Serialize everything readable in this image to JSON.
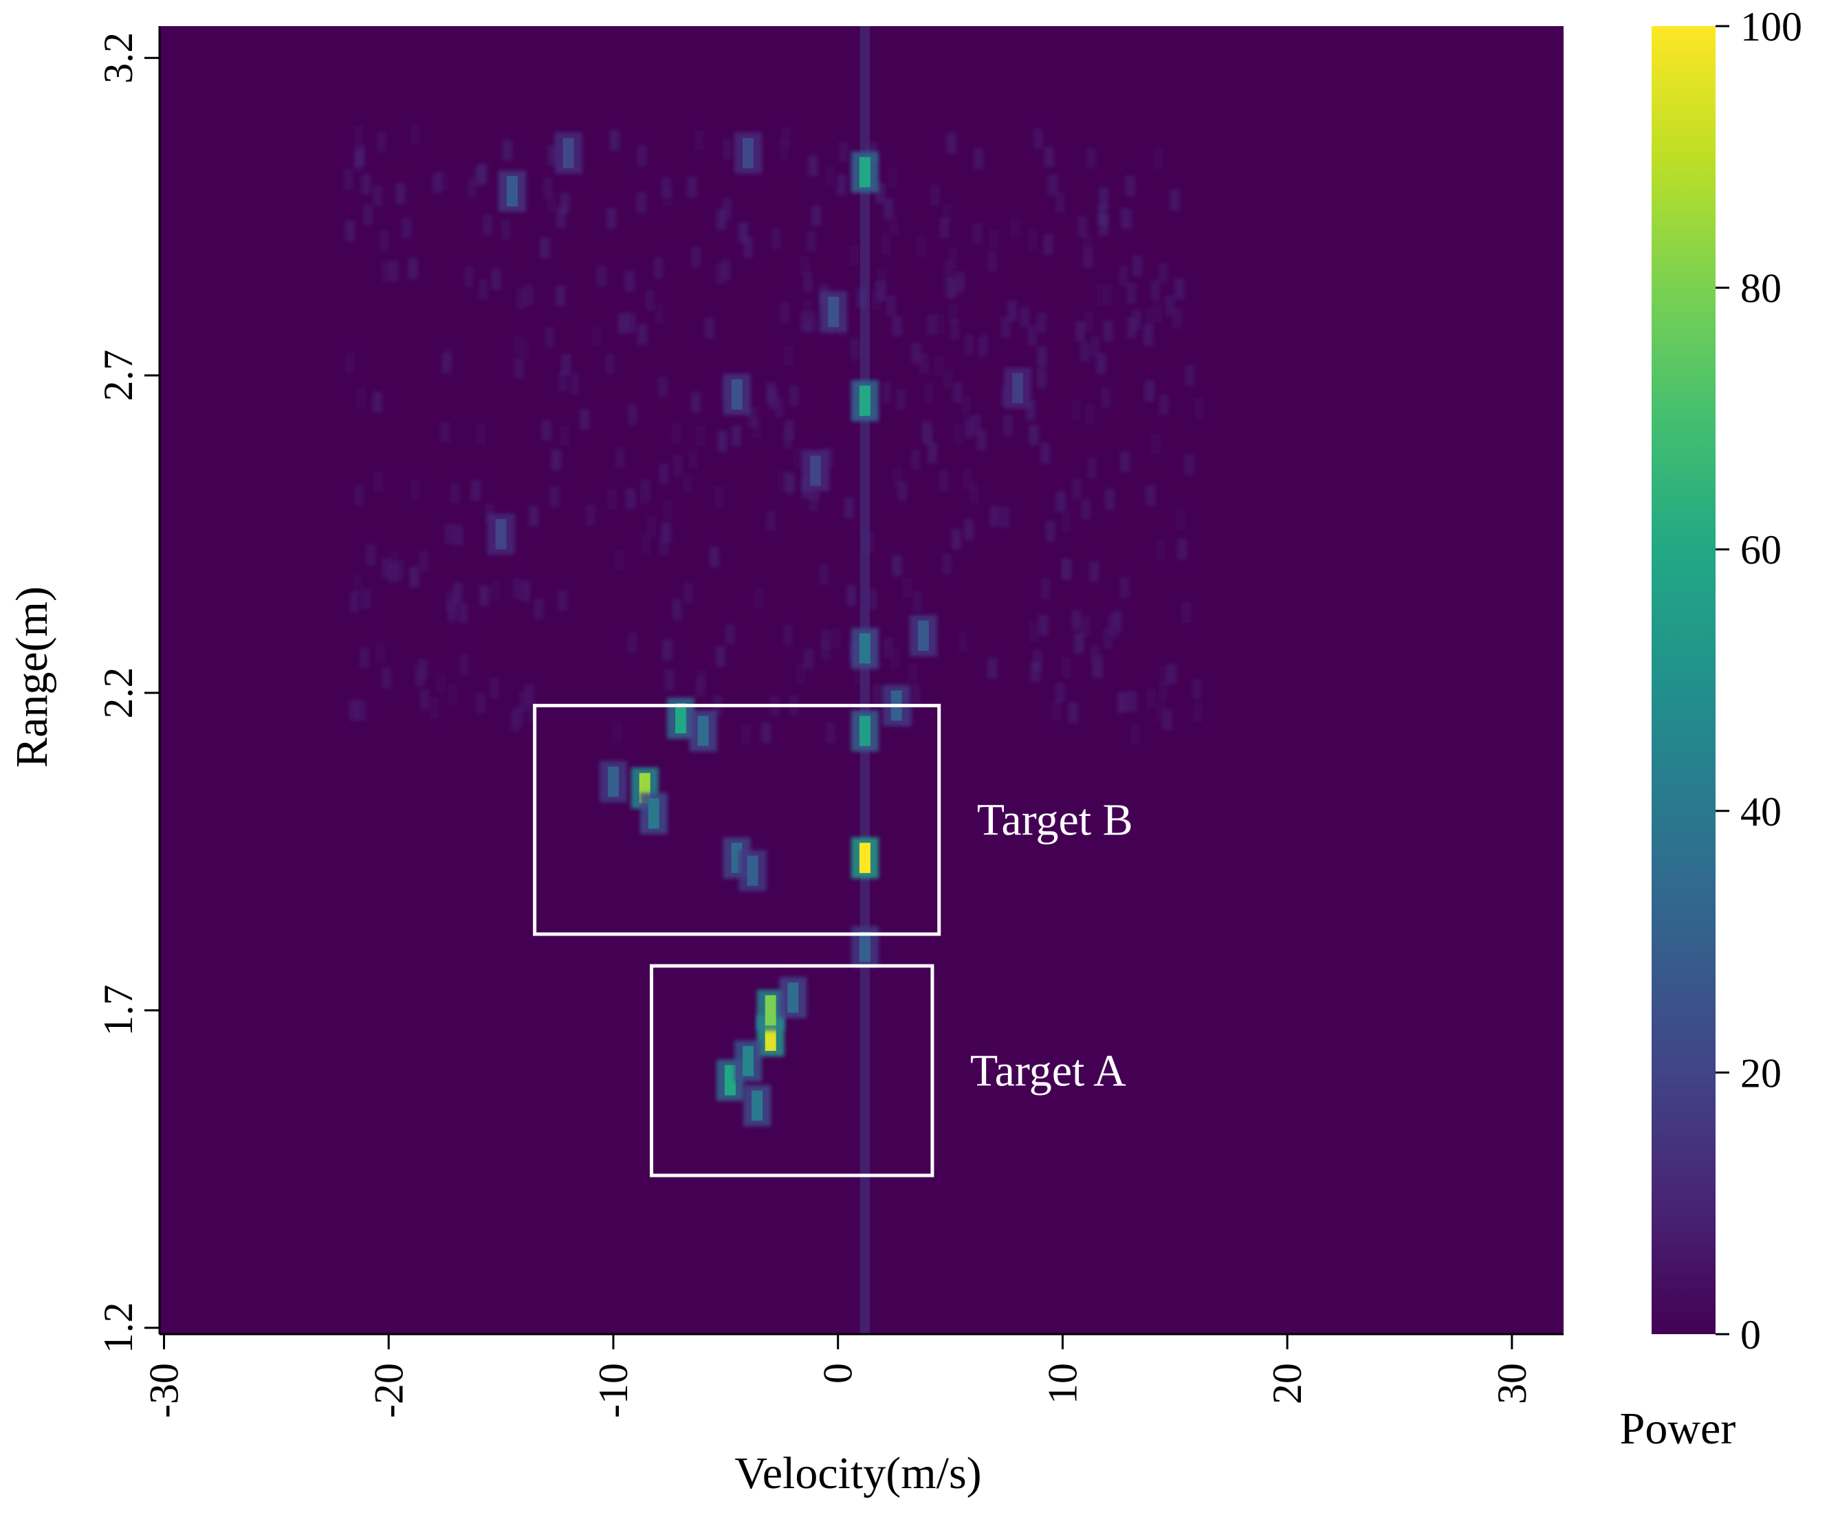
{
  "chart_data": {
    "type": "heatmap",
    "title": "",
    "xlabel": "Velocity(m/s)",
    "ylabel": "Range(m)",
    "xlim": [
      -30.2,
      32.3
    ],
    "ylim": [
      1.19,
      3.25
    ],
    "x_ticks": [
      -30,
      -20,
      -10,
      0,
      10,
      20,
      30
    ],
    "x_tick_labels": [
      "-30",
      "-20",
      "-10",
      "0",
      "10",
      "20",
      "30"
    ],
    "y_ticks": [
      1.2,
      1.7,
      2.2,
      2.7,
      3.2
    ],
    "y_tick_labels": [
      "1.2",
      "1.7",
      "2.2",
      "2.7",
      "3.2"
    ],
    "colorbar": {
      "label": "Power",
      "range": [
        0,
        100
      ],
      "ticks": [
        0,
        20,
        40,
        60,
        80,
        100
      ],
      "tick_labels": [
        "0",
        "20",
        "40",
        "60",
        "80",
        "100"
      ],
      "colormap": "viridis"
    },
    "background_color": "#440154",
    "hotspots": [
      {
        "x": 1.2,
        "y": 1.94,
        "value": 100
      },
      {
        "x": 1.2,
        "y": 2.14,
        "value": 55
      },
      {
        "x": 1.2,
        "y": 2.27,
        "value": 40
      },
      {
        "x": 1.2,
        "y": 2.66,
        "value": 60
      },
      {
        "x": 1.2,
        "y": 3.02,
        "value": 60
      },
      {
        "x": 1.2,
        "y": 1.8,
        "value": 30
      },
      {
        "x": -0.2,
        "y": 2.8,
        "value": 25
      },
      {
        "x": -3.0,
        "y": 1.66,
        "value": 95
      },
      {
        "x": -3.0,
        "y": 1.7,
        "value": 80
      },
      {
        "x": -4.8,
        "y": 1.59,
        "value": 60
      },
      {
        "x": -4.0,
        "y": 1.62,
        "value": 45
      },
      {
        "x": -3.6,
        "y": 1.55,
        "value": 40
      },
      {
        "x": -2.0,
        "y": 1.72,
        "value": 35
      },
      {
        "x": -8.6,
        "y": 2.05,
        "value": 85
      },
      {
        "x": -8.2,
        "y": 2.01,
        "value": 40
      },
      {
        "x": -7.0,
        "y": 2.16,
        "value": 60
      },
      {
        "x": -6.0,
        "y": 2.14,
        "value": 35
      },
      {
        "x": -4.5,
        "y": 1.94,
        "value": 35
      },
      {
        "x": -3.8,
        "y": 1.92,
        "value": 30
      },
      {
        "x": -10.0,
        "y": 2.06,
        "value": 30
      },
      {
        "x": 2.6,
        "y": 2.18,
        "value": 30
      },
      {
        "x": 3.8,
        "y": 2.29,
        "value": 28
      },
      {
        "x": -14.5,
        "y": 2.99,
        "value": 28
      },
      {
        "x": -12.0,
        "y": 3.05,
        "value": 22
      },
      {
        "x": -4.5,
        "y": 2.67,
        "value": 25
      },
      {
        "x": -4.0,
        "y": 3.05,
        "value": 22
      },
      {
        "x": -1.0,
        "y": 2.55,
        "value": 20
      },
      {
        "x": -15.0,
        "y": 2.45,
        "value": 20
      },
      {
        "x": 8.0,
        "y": 2.68,
        "value": 18
      }
    ],
    "annotations": [
      {
        "text": "Target B",
        "box_x": [
          -13.5,
          4.5
        ],
        "box_y": [
          1.82,
          2.18
        ]
      },
      {
        "text": "Target A",
        "box_x": [
          -8.3,
          4.2
        ],
        "box_y": [
          1.44,
          1.77
        ]
      }
    ]
  }
}
